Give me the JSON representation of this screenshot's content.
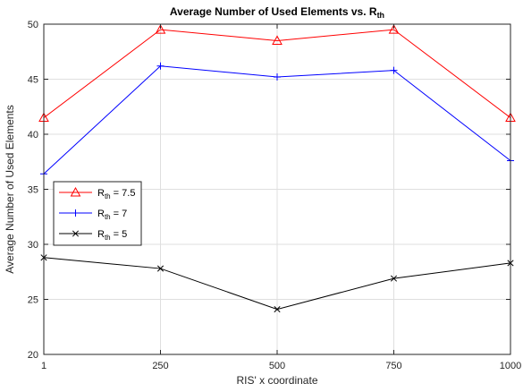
{
  "chart_data": {
    "type": "line",
    "title": "Average Number of Used Elements vs. R",
    "title_subscript": "th",
    "xlabel": "RIS' x coordinate",
    "ylabel": "Average Number of Used Elements",
    "x": [
      1,
      250,
      500,
      750,
      1000
    ],
    "x_tick_labels": [
      "1",
      "250",
      "500",
      "750",
      "1000"
    ],
    "ylim": [
      20,
      50
    ],
    "y_ticks": [
      20,
      25,
      30,
      35,
      40,
      45,
      50
    ],
    "grid": true,
    "legend_position": "left",
    "series": [
      {
        "name": "R",
        "name_subscript": "th",
        "name_suffix": " = 7.5",
        "color": "#ff0000",
        "marker": "triangle",
        "values": [
          41.5,
          49.5,
          48.5,
          49.5,
          41.5
        ]
      },
      {
        "name": "R",
        "name_subscript": "th",
        "name_suffix": " = 7",
        "color": "#0000ff",
        "marker": "plus",
        "values": [
          36.4,
          46.2,
          45.2,
          45.8,
          37.6
        ]
      },
      {
        "name": "R",
        "name_subscript": "th",
        "name_suffix": " = 5",
        "color": "#000000",
        "marker": "x",
        "values": [
          28.8,
          27.8,
          24.1,
          26.9,
          28.3
        ]
      }
    ]
  }
}
